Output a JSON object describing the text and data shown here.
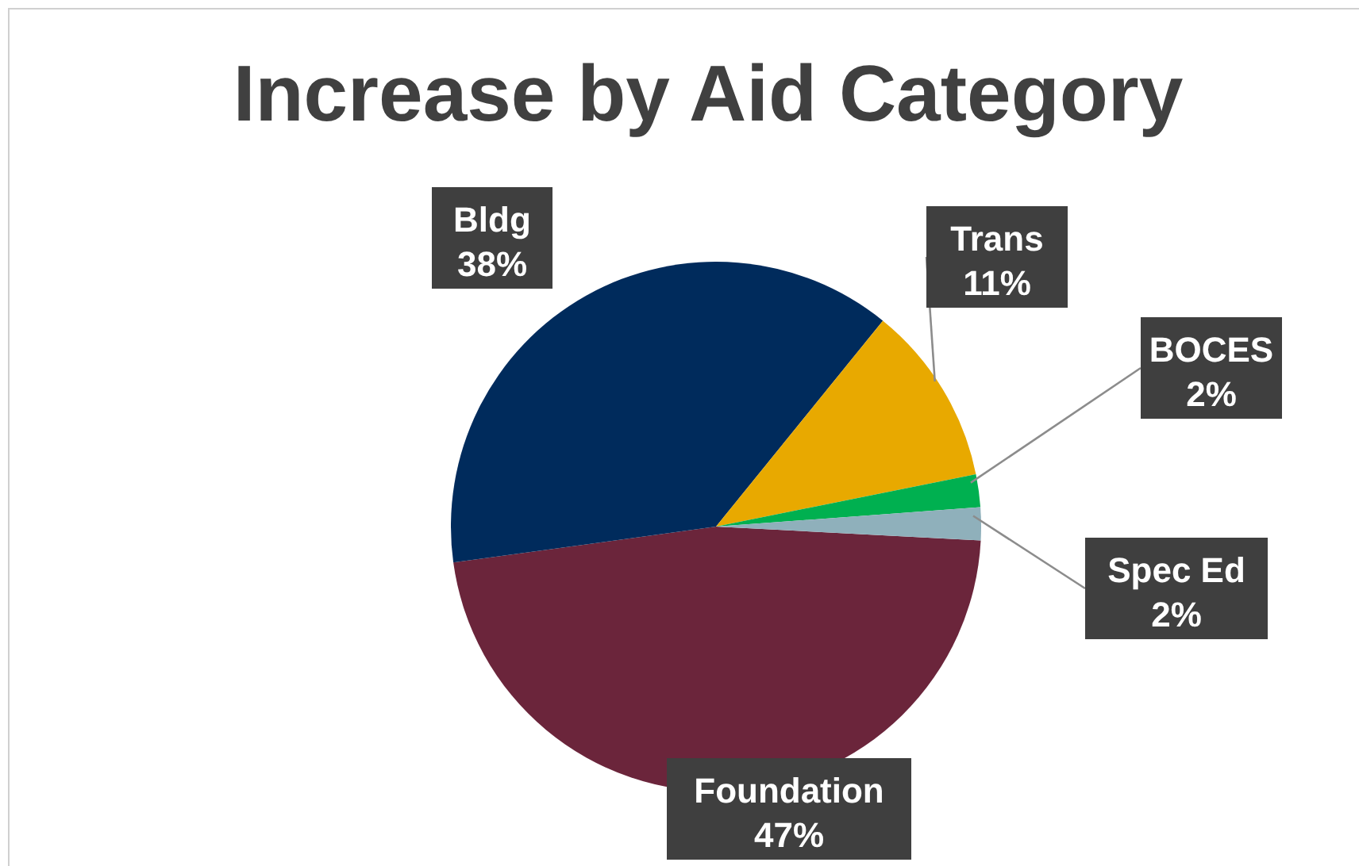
{
  "chart_data": {
    "type": "pie",
    "title": "Increase by Aid Category",
    "categories": [
      "Foundation",
      "Bldg",
      "Trans",
      "BOCES",
      "Spec Ed"
    ],
    "values": [
      47,
      38,
      11,
      2,
      2
    ],
    "colors": [
      "#6b253b",
      "#002b5c",
      "#e8a900",
      "#00b050",
      "#8fb0bb"
    ],
    "value_labels": [
      "47%",
      "38%",
      "11%",
      "2%",
      "2%"
    ]
  }
}
